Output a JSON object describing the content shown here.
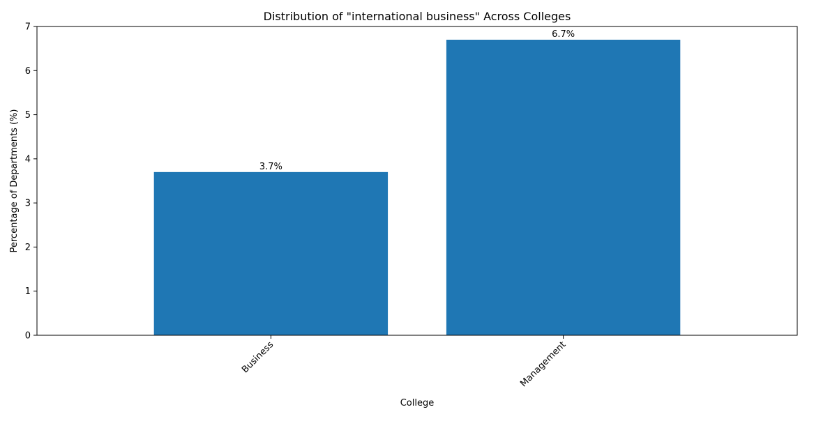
{
  "chart_data": {
    "type": "bar",
    "title": "Distribution of \"international business\" Across Colleges",
    "xlabel": "College",
    "ylabel": "Percentage of Departments (%)",
    "categories": [
      "Business",
      "Management"
    ],
    "values": [
      3.7,
      6.7
    ],
    "data_labels": [
      "3.7%",
      "6.7%"
    ],
    "ylim": [
      0,
      7
    ],
    "yticks": [
      0,
      1,
      2,
      3,
      4,
      5,
      6,
      7
    ],
    "bar_color": "#1f77b4",
    "grid": false,
    "x_tick_rotation": "45 degrees, right-aligned"
  }
}
